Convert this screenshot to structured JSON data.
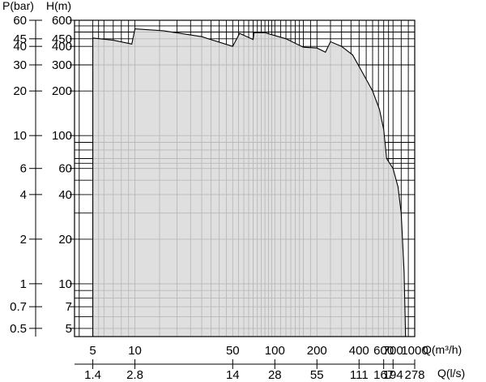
{
  "chart_data": {
    "type": "area",
    "title": "",
    "x_scale": "log",
    "y_scale": "log",
    "grid": true,
    "legend": "none",
    "colors": {
      "fill": "#d9d9d9",
      "outline": "#000000",
      "grid": "#000000"
    },
    "xlabel": "Q(m³/h)",
    "xlabel_secondary": "Q(l/s)",
    "ylabel_left": "P(bar)",
    "ylabel_right": "H(m)",
    "xlim": [
      3.7,
      1000
    ],
    "ylim": [
      4.4,
      600
    ],
    "x_ticks": [
      {
        "value": 5,
        "label": "5"
      },
      {
        "value": 10,
        "label": "10"
      },
      {
        "value": 50,
        "label": "50"
      },
      {
        "value": 100,
        "label": "100"
      },
      {
        "value": 200,
        "label": "200"
      },
      {
        "value": 400,
        "label": "400"
      },
      {
        "value": 600,
        "label": "600"
      },
      {
        "value": 700,
        "label": "700"
      },
      {
        "value": 1000,
        "label": "1000"
      }
    ],
    "x2_ticks": [
      {
        "value": 5,
        "label": "1.4"
      },
      {
        "value": 10,
        "label": "2.8"
      },
      {
        "value": 50,
        "label": "14"
      },
      {
        "value": 100,
        "label": "28"
      },
      {
        "value": 200,
        "label": "55"
      },
      {
        "value": 400,
        "label": "111"
      },
      {
        "value": 600,
        "label": "167"
      },
      {
        "value": 700,
        "label": "194"
      },
      {
        "value": 1000,
        "label": "278"
      }
    ],
    "y_ticks_h": [
      {
        "value": 600,
        "label": "600"
      },
      {
        "value": 450,
        "label": "450"
      },
      {
        "value": 400,
        "label": "400"
      },
      {
        "value": 300,
        "label": "300"
      },
      {
        "value": 200,
        "label": "200"
      },
      {
        "value": 100,
        "label": "100"
      },
      {
        "value": 60,
        "label": "60"
      },
      {
        "value": 40,
        "label": "40"
      },
      {
        "value": 20,
        "label": "20"
      },
      {
        "value": 10,
        "label": "10"
      },
      {
        "value": 7,
        "label": "7"
      },
      {
        "value": 5,
        "label": "5"
      }
    ],
    "y_ticks_p": [
      {
        "value": 600,
        "label": "60"
      },
      {
        "value": 450,
        "label": "45"
      },
      {
        "value": 400,
        "label": "40"
      },
      {
        "value": 300,
        "label": "30"
      },
      {
        "value": 200,
        "label": "20"
      },
      {
        "value": 100,
        "label": "10"
      },
      {
        "value": 60,
        "label": "6"
      },
      {
        "value": 40,
        "label": "4"
      },
      {
        "value": 20,
        "label": "2"
      },
      {
        "value": 10,
        "label": "1"
      },
      {
        "value": 7,
        "label": "0.7"
      },
      {
        "value": 5,
        "label": "0.5"
      }
    ],
    "grid_x": [
      4,
      5,
      5.5,
      6,
      7,
      8,
      9,
      10,
      15,
      20,
      25,
      30,
      35,
      40,
      45,
      50,
      55,
      60,
      65,
      70,
      75,
      80,
      85,
      90,
      95,
      100,
      110,
      120,
      130,
      140,
      150,
      160,
      180,
      200,
      250,
      300,
      350,
      400,
      450,
      500,
      550,
      600,
      650,
      700,
      800,
      900,
      1000
    ],
    "grid_y": [
      4.4,
      5,
      6,
      7,
      8,
      9,
      10,
      20,
      30,
      40,
      50,
      60,
      65,
      70,
      80,
      90,
      100,
      200,
      300,
      400,
      450,
      500,
      550,
      600
    ],
    "envelope": [
      {
        "x": 5,
        "y": 4.4
      },
      {
        "x": 5,
        "y": 455
      },
      {
        "x": 7,
        "y": 440
      },
      {
        "x": 9.5,
        "y": 415
      },
      {
        "x": 10,
        "y": 525
      },
      {
        "x": 16,
        "y": 510
      },
      {
        "x": 30,
        "y": 465
      },
      {
        "x": 50,
        "y": 400
      },
      {
        "x": 56,
        "y": 490
      },
      {
        "x": 70,
        "y": 445
      },
      {
        "x": 71,
        "y": 495
      },
      {
        "x": 85,
        "y": 495
      },
      {
        "x": 120,
        "y": 450
      },
      {
        "x": 160,
        "y": 395
      },
      {
        "x": 200,
        "y": 390
      },
      {
        "x": 230,
        "y": 365
      },
      {
        "x": 250,
        "y": 430
      },
      {
        "x": 300,
        "y": 400
      },
      {
        "x": 360,
        "y": 350
      },
      {
        "x": 420,
        "y": 270
      },
      {
        "x": 500,
        "y": 200
      },
      {
        "x": 560,
        "y": 150
      },
      {
        "x": 600,
        "y": 110
      },
      {
        "x": 630,
        "y": 70
      },
      {
        "x": 700,
        "y": 60
      },
      {
        "x": 760,
        "y": 45
      },
      {
        "x": 800,
        "y": 30
      },
      {
        "x": 840,
        "y": 12
      },
      {
        "x": 860,
        "y": 4.4
      }
    ]
  }
}
